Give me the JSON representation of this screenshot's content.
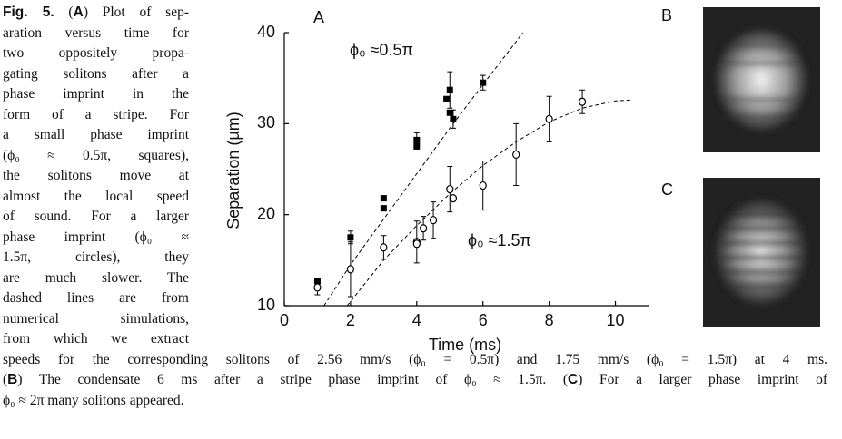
{
  "caption": {
    "left_lines": [
      [
        {
          "text": "Fig. 5.",
          "bold": true
        },
        " (",
        {
          "text": "A",
          "bold": true
        },
        ") Plot of sep-"
      ],
      [
        "aration versus time for"
      ],
      [
        "two oppositely propa-"
      ],
      [
        "gating solitons after a"
      ],
      [
        "phase imprint in the"
      ],
      [
        "form of a stripe. For"
      ],
      [
        "a small phase imprint"
      ],
      [
        "(ϕ₀ ≈ 0.5π, squares),"
      ],
      [
        "the solitons move at"
      ],
      [
        "almost the local speed"
      ],
      [
        "of sound. For a larger"
      ],
      [
        "phase imprint (ϕ₀ ≈"
      ],
      [
        "1.5π, circles), they"
      ],
      [
        "are much slower. The"
      ],
      [
        "dashed lines are from"
      ],
      [
        "numerical simulations,"
      ],
      [
        "from which we extract"
      ]
    ],
    "bottom_lines": [
      [
        "speeds for the corresponding solitons of 2.56 mm/s (ϕ₀ = 0.5π) and 1.75 mm/s (ϕ₀ = 1.5π) at 4 ms."
      ],
      [
        "(",
        {
          "text": "B",
          "bold": true
        },
        ") The condensate 6 ms after a stripe phase imprint of ϕ₀ ≈ 1.5π. (",
        {
          "text": "C",
          "bold": true
        },
        ") For a larger phase imprint of"
      ],
      [
        "ϕ₀ ≈ 2π many solitons appeared."
      ]
    ]
  },
  "chart_data": {
    "type": "scatter",
    "panel_label": "A",
    "x_label": "Time (ms)",
    "y_label": "Separation (µm)",
    "xlim": [
      0,
      11
    ],
    "xticks": [
      0,
      2,
      4,
      6,
      8,
      10
    ],
    "ylim": [
      10,
      40
    ],
    "yticks": [
      10,
      20,
      30,
      40
    ],
    "annotations": [
      "ϕ₀ ≈0.5π",
      "ϕ₀ ≈1.5π"
    ],
    "series": [
      {
        "marker": "square",
        "color": "#000000",
        "x": [
          1,
          2,
          3,
          3,
          4,
          4,
          4.9,
          5,
          5,
          5.1,
          6
        ],
        "values": [
          12.7,
          17.5,
          21.8,
          20.7,
          27.5,
          28.2,
          32.7,
          33.7,
          31.2,
          30.5,
          34.5
        ],
        "error": [
          null,
          0.7,
          null,
          null,
          null,
          0.8,
          null,
          2,
          null,
          1,
          0.8
        ]
      },
      {
        "marker": "circle",
        "color": "#000000",
        "x": [
          1,
          2,
          3,
          4,
          4,
          4.2,
          4.5,
          5,
          5.1,
          6,
          7,
          8,
          9
        ],
        "values": [
          12,
          14,
          16.4,
          17,
          16.8,
          18.5,
          19.4,
          22.8,
          21.8,
          23.2,
          26.6,
          30.5,
          32.4
        ],
        "error": [
          0.8,
          3,
          1.3,
          2.3,
          null,
          1.3,
          2,
          2.5,
          null,
          2.7,
          3.4,
          2.5,
          1.3
        ]
      }
    ],
    "curves": [
      {
        "color": "#000000",
        "x": [
          1.2,
          2,
          3,
          4,
          5,
          6,
          7,
          7.2
        ],
        "values": [
          10,
          14.5,
          19.5,
          24.5,
          29.5,
          34.3,
          39,
          40
        ]
      },
      {
        "color": "#000000",
        "x": [
          1.9,
          3,
          4,
          5,
          6,
          7,
          8,
          9,
          10,
          10.5
        ],
        "values": [
          10,
          15,
          18.8,
          22.3,
          25.4,
          28,
          30.2,
          31.7,
          32.5,
          32.6
        ]
      }
    ]
  },
  "panels": [
    {
      "label": "B"
    },
    {
      "label": "C"
    }
  ]
}
